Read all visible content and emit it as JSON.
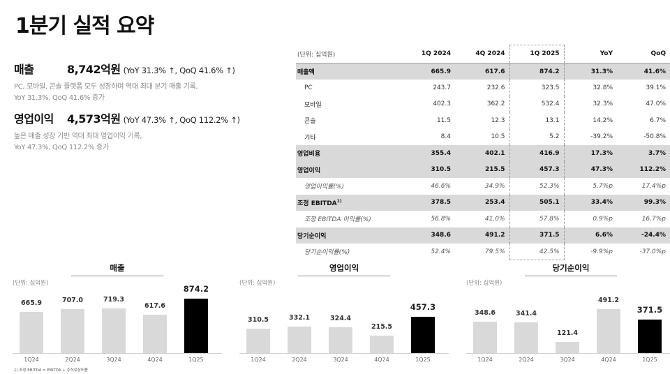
{
  "page": {
    "title": "1분기 실적 요약"
  },
  "summary": [
    {
      "label": "매출",
      "value": "8,742억원",
      "change": "(YoY 31.3% ↑, QoQ 41.6% ↑)",
      "desc_line1": "PC, 모바일, 콘솔 플랫폼 모두 성장하며 역대 최대 분기 매출 기록,",
      "desc_line2": "YoY 31.3%, QoQ 41.6% 증가"
    },
    {
      "label": "영업이익",
      "value": "4,573억원",
      "change": "(YoY 47.3% ↑, QoQ 112.2% ↑)",
      "desc_line1": "높은 매출 성장 기반 역대 최대 영업이익 기록,",
      "desc_line2": "YoY 47.3%, QoQ 112.2% 증가"
    }
  ],
  "table": {
    "unit": "(단위: 십억원)",
    "headers": [
      "1Q 2024",
      "4Q 2024",
      "1Q 2025",
      "YoY",
      "QoQ"
    ],
    "rows": [
      {
        "label": "매출액",
        "type": "major",
        "values": [
          "665.9",
          "617.6",
          "874.2",
          "31.3%",
          "41.6%"
        ]
      },
      {
        "label": "PC",
        "type": "sub",
        "values": [
          "243.7",
          "232.6",
          "323.5",
          "32.8%",
          "39.1%"
        ]
      },
      {
        "label": "모바일",
        "type": "sub",
        "values": [
          "402.3",
          "362.2",
          "532.4",
          "32.3%",
          "47.0%"
        ]
      },
      {
        "label": "콘솔",
        "type": "sub",
        "values": [
          "11.5",
          "12.3",
          "13.1",
          "14.2%",
          "6.7%"
        ]
      },
      {
        "label": "기타",
        "type": "sub",
        "values": [
          "8.4",
          "10.5",
          "5.2",
          "-39.2%",
          "-50.8%"
        ]
      },
      {
        "label": "영업비용",
        "type": "major",
        "values": [
          "355.4",
          "402.1",
          "416.9",
          "17.3%",
          "3.7%"
        ]
      },
      {
        "label": "영업이익",
        "type": "major",
        "values": [
          "310.5",
          "215.5",
          "457.3",
          "47.3%",
          "112.2%"
        ]
      },
      {
        "label": "영업이익률(%)",
        "type": "italic",
        "values": [
          "46.6%",
          "34.9%",
          "52.3%",
          "5.7%p",
          "17.4%p"
        ]
      },
      {
        "label": "조정 EBITDA",
        "sup": "1)",
        "type": "major",
        "values": [
          "378.5",
          "253.4",
          "505.1",
          "33.4%",
          "99.3%"
        ]
      },
      {
        "label": "조정 EBITDA 이익률(%)",
        "type": "italic",
        "values": [
          "56.8%",
          "41.0%",
          "57.8%",
          "0.9%p",
          "16.7%p"
        ]
      },
      {
        "label": "당기순이익",
        "type": "major",
        "values": [
          "348.6",
          "491.2",
          "371.5",
          "6.6%",
          "-24.4%"
        ]
      },
      {
        "label": "당기순이익률(%)",
        "type": "italic",
        "values": [
          "52.4%",
          "79.5%",
          "42.5%",
          "-9.9%p",
          "-37.0%p"
        ]
      }
    ]
  },
  "chart_data": [
    {
      "type": "bar",
      "title": "매출",
      "unit": "(단위: 십억원)",
      "categories": [
        "1Q24",
        "2Q24",
        "3Q24",
        "4Q24",
        "1Q25"
      ],
      "values": [
        665.9,
        707.0,
        719.3,
        617.6,
        874.2
      ],
      "value_labels": [
        "665.9",
        "707.0",
        "719.3",
        "617.6",
        "874.2"
      ],
      "highlight_index": 4,
      "colors": {
        "bar": "#d9d9d9",
        "highlight": "#000000"
      },
      "xlabel": "",
      "ylabel": "",
      "grid": false
    },
    {
      "type": "bar",
      "title": "영업이익",
      "unit": "(단위: 십억원)",
      "categories": [
        "1Q24",
        "2Q24",
        "3Q24",
        "4Q24",
        "1Q25"
      ],
      "values": [
        310.5,
        332.1,
        324.4,
        215.5,
        457.3
      ],
      "value_labels": [
        "310.5",
        "332.1",
        "324.4",
        "215.5",
        "457.3"
      ],
      "highlight_index": 4,
      "colors": {
        "bar": "#d9d9d9",
        "highlight": "#000000"
      },
      "xlabel": "",
      "ylabel": "",
      "grid": false
    },
    {
      "type": "bar",
      "title": "당기순이익",
      "unit": "(단위: 십억원)",
      "categories": [
        "1Q24",
        "2Q24",
        "3Q24",
        "4Q24",
        "1Q25"
      ],
      "values": [
        348.6,
        341.4,
        121.4,
        491.2,
        371.5
      ],
      "value_labels": [
        "348.6",
        "341.4",
        "121.4",
        "491.2",
        "371.5"
      ],
      "highlight_index": 4,
      "colors": {
        "bar": "#d9d9d9",
        "highlight": "#000000"
      },
      "xlabel": "",
      "ylabel": "",
      "grid": false
    }
  ],
  "footnote": "1) 조정 EBITDA = EBITDA + 주식보상비용"
}
